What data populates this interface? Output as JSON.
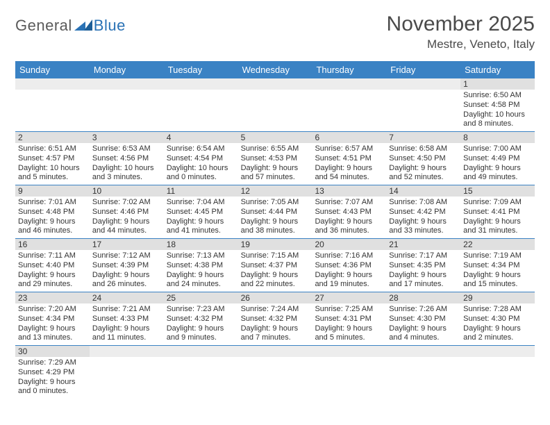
{
  "logo": {
    "part1": "General",
    "part2": "Blue"
  },
  "title": "November 2025",
  "location": "Mestre, Veneto, Italy",
  "colors": {
    "header_bg": "#3a82c4",
    "header_fg": "#ffffff",
    "daynum_bg": "#e0e0e0",
    "empty_bg": "#ededed",
    "rule": "#3a82c4",
    "text": "#333333",
    "logo_gray": "#5a5a5a",
    "logo_blue": "#2a72b5",
    "title_color": "#4a4a4a"
  },
  "weekdays": [
    "Sunday",
    "Monday",
    "Tuesday",
    "Wednesday",
    "Thursday",
    "Friday",
    "Saturday"
  ],
  "weeks": [
    [
      null,
      null,
      null,
      null,
      null,
      null,
      {
        "n": "1",
        "sr": "Sunrise: 6:50 AM",
        "ss": "Sunset: 4:58 PM",
        "d1": "Daylight: 10 hours",
        "d2": "and 8 minutes."
      }
    ],
    [
      {
        "n": "2",
        "sr": "Sunrise: 6:51 AM",
        "ss": "Sunset: 4:57 PM",
        "d1": "Daylight: 10 hours",
        "d2": "and 5 minutes."
      },
      {
        "n": "3",
        "sr": "Sunrise: 6:53 AM",
        "ss": "Sunset: 4:56 PM",
        "d1": "Daylight: 10 hours",
        "d2": "and 3 minutes."
      },
      {
        "n": "4",
        "sr": "Sunrise: 6:54 AM",
        "ss": "Sunset: 4:54 PM",
        "d1": "Daylight: 10 hours",
        "d2": "and 0 minutes."
      },
      {
        "n": "5",
        "sr": "Sunrise: 6:55 AM",
        "ss": "Sunset: 4:53 PM",
        "d1": "Daylight: 9 hours",
        "d2": "and 57 minutes."
      },
      {
        "n": "6",
        "sr": "Sunrise: 6:57 AM",
        "ss": "Sunset: 4:51 PM",
        "d1": "Daylight: 9 hours",
        "d2": "and 54 minutes."
      },
      {
        "n": "7",
        "sr": "Sunrise: 6:58 AM",
        "ss": "Sunset: 4:50 PM",
        "d1": "Daylight: 9 hours",
        "d2": "and 52 minutes."
      },
      {
        "n": "8",
        "sr": "Sunrise: 7:00 AM",
        "ss": "Sunset: 4:49 PM",
        "d1": "Daylight: 9 hours",
        "d2": "and 49 minutes."
      }
    ],
    [
      {
        "n": "9",
        "sr": "Sunrise: 7:01 AM",
        "ss": "Sunset: 4:48 PM",
        "d1": "Daylight: 9 hours",
        "d2": "and 46 minutes."
      },
      {
        "n": "10",
        "sr": "Sunrise: 7:02 AM",
        "ss": "Sunset: 4:46 PM",
        "d1": "Daylight: 9 hours",
        "d2": "and 44 minutes."
      },
      {
        "n": "11",
        "sr": "Sunrise: 7:04 AM",
        "ss": "Sunset: 4:45 PM",
        "d1": "Daylight: 9 hours",
        "d2": "and 41 minutes."
      },
      {
        "n": "12",
        "sr": "Sunrise: 7:05 AM",
        "ss": "Sunset: 4:44 PM",
        "d1": "Daylight: 9 hours",
        "d2": "and 38 minutes."
      },
      {
        "n": "13",
        "sr": "Sunrise: 7:07 AM",
        "ss": "Sunset: 4:43 PM",
        "d1": "Daylight: 9 hours",
        "d2": "and 36 minutes."
      },
      {
        "n": "14",
        "sr": "Sunrise: 7:08 AM",
        "ss": "Sunset: 4:42 PM",
        "d1": "Daylight: 9 hours",
        "d2": "and 33 minutes."
      },
      {
        "n": "15",
        "sr": "Sunrise: 7:09 AM",
        "ss": "Sunset: 4:41 PM",
        "d1": "Daylight: 9 hours",
        "d2": "and 31 minutes."
      }
    ],
    [
      {
        "n": "16",
        "sr": "Sunrise: 7:11 AM",
        "ss": "Sunset: 4:40 PM",
        "d1": "Daylight: 9 hours",
        "d2": "and 29 minutes."
      },
      {
        "n": "17",
        "sr": "Sunrise: 7:12 AM",
        "ss": "Sunset: 4:39 PM",
        "d1": "Daylight: 9 hours",
        "d2": "and 26 minutes."
      },
      {
        "n": "18",
        "sr": "Sunrise: 7:13 AM",
        "ss": "Sunset: 4:38 PM",
        "d1": "Daylight: 9 hours",
        "d2": "and 24 minutes."
      },
      {
        "n": "19",
        "sr": "Sunrise: 7:15 AM",
        "ss": "Sunset: 4:37 PM",
        "d1": "Daylight: 9 hours",
        "d2": "and 22 minutes."
      },
      {
        "n": "20",
        "sr": "Sunrise: 7:16 AM",
        "ss": "Sunset: 4:36 PM",
        "d1": "Daylight: 9 hours",
        "d2": "and 19 minutes."
      },
      {
        "n": "21",
        "sr": "Sunrise: 7:17 AM",
        "ss": "Sunset: 4:35 PM",
        "d1": "Daylight: 9 hours",
        "d2": "and 17 minutes."
      },
      {
        "n": "22",
        "sr": "Sunrise: 7:19 AM",
        "ss": "Sunset: 4:34 PM",
        "d1": "Daylight: 9 hours",
        "d2": "and 15 minutes."
      }
    ],
    [
      {
        "n": "23",
        "sr": "Sunrise: 7:20 AM",
        "ss": "Sunset: 4:34 PM",
        "d1": "Daylight: 9 hours",
        "d2": "and 13 minutes."
      },
      {
        "n": "24",
        "sr": "Sunrise: 7:21 AM",
        "ss": "Sunset: 4:33 PM",
        "d1": "Daylight: 9 hours",
        "d2": "and 11 minutes."
      },
      {
        "n": "25",
        "sr": "Sunrise: 7:23 AM",
        "ss": "Sunset: 4:32 PM",
        "d1": "Daylight: 9 hours",
        "d2": "and 9 minutes."
      },
      {
        "n": "26",
        "sr": "Sunrise: 7:24 AM",
        "ss": "Sunset: 4:32 PM",
        "d1": "Daylight: 9 hours",
        "d2": "and 7 minutes."
      },
      {
        "n": "27",
        "sr": "Sunrise: 7:25 AM",
        "ss": "Sunset: 4:31 PM",
        "d1": "Daylight: 9 hours",
        "d2": "and 5 minutes."
      },
      {
        "n": "28",
        "sr": "Sunrise: 7:26 AM",
        "ss": "Sunset: 4:30 PM",
        "d1": "Daylight: 9 hours",
        "d2": "and 4 minutes."
      },
      {
        "n": "29",
        "sr": "Sunrise: 7:28 AM",
        "ss": "Sunset: 4:30 PM",
        "d1": "Daylight: 9 hours",
        "d2": "and 2 minutes."
      }
    ],
    [
      {
        "n": "30",
        "sr": "Sunrise: 7:29 AM",
        "ss": "Sunset: 4:29 PM",
        "d1": "Daylight: 9 hours",
        "d2": "and 0 minutes."
      },
      null,
      null,
      null,
      null,
      null,
      null
    ]
  ]
}
